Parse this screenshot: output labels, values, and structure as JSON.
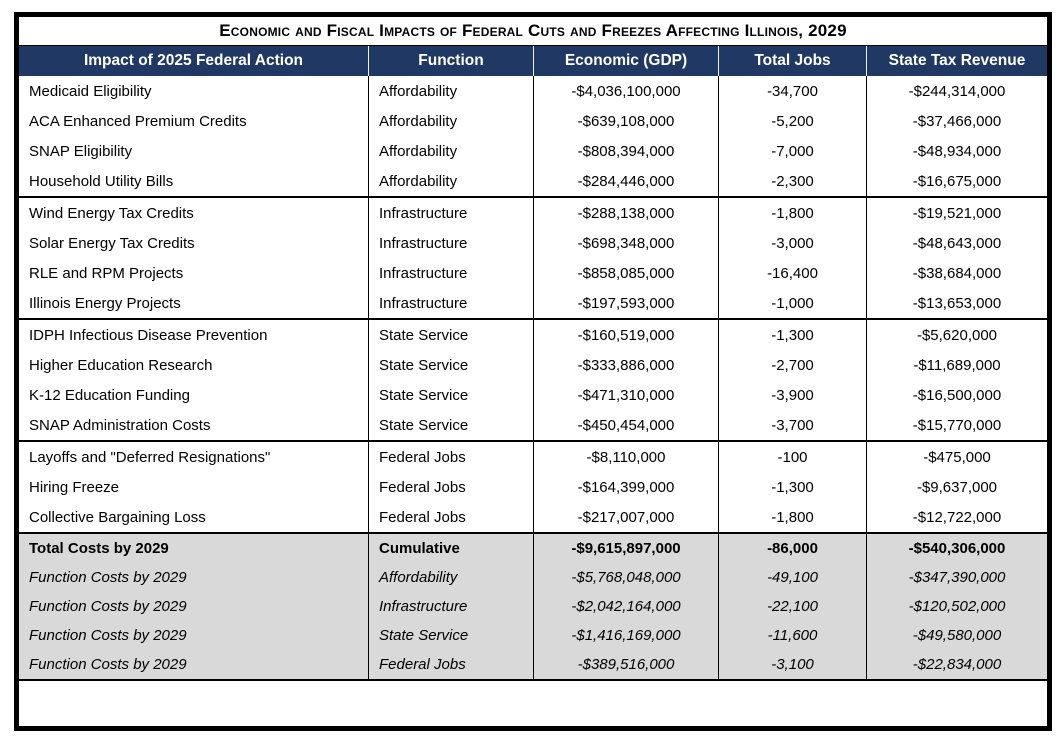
{
  "chart_data": {
    "type": "table",
    "title": "Economic and Fiscal Impacts of Federal Cuts and Freezes Affecting Illinois, 2029",
    "columns": [
      "Impact of 2025 Federal Action",
      "Function",
      "Economic (GDP)",
      "Total Jobs",
      "State Tax Revenue"
    ],
    "groups": [
      [
        [
          "Medicaid Eligibility",
          "Affordability",
          "-$4,036,100,000",
          "-34,700",
          "-$244,314,000"
        ],
        [
          "ACA Enhanced Premium Credits",
          "Affordability",
          "-$639,108,000",
          "-5,200",
          "-$37,466,000"
        ],
        [
          "SNAP Eligibility",
          "Affordability",
          "-$808,394,000",
          "-7,000",
          "-$48,934,000"
        ],
        [
          "Household Utility Bills",
          "Affordability",
          "-$284,446,000",
          "-2,300",
          "-$16,675,000"
        ]
      ],
      [
        [
          "Wind Energy Tax Credits",
          "Infrastructure",
          "-$288,138,000",
          "-1,800",
          "-$19,521,000"
        ],
        [
          "Solar Energy Tax Credits",
          "Infrastructure",
          "-$698,348,000",
          "-3,000",
          "-$48,643,000"
        ],
        [
          "RLE and RPM Projects",
          "Infrastructure",
          "-$858,085,000",
          "-16,400",
          "-$38,684,000"
        ],
        [
          "Illinois Energy Projects",
          "Infrastructure",
          "-$197,593,000",
          "-1,000",
          "-$13,653,000"
        ]
      ],
      [
        [
          "IDPH Infectious Disease Prevention",
          "State Service",
          "-$160,519,000",
          "-1,300",
          "-$5,620,000"
        ],
        [
          "Higher Education Research",
          "State Service",
          "-$333,886,000",
          "-2,700",
          "-$11,689,000"
        ],
        [
          "K-12 Education Funding",
          "State Service",
          "-$471,310,000",
          "-3,900",
          "-$16,500,000"
        ],
        [
          "SNAP Administration Costs",
          "State Service",
          "-$450,454,000",
          "-3,700",
          "-$15,770,000"
        ]
      ],
      [
        [
          "Layoffs and \"Deferred Resignations\"",
          "Federal Jobs",
          "-$8,110,000",
          "-100",
          "-$475,000"
        ],
        [
          "Hiring Freeze",
          "Federal Jobs",
          "-$164,399,000",
          "-1,300",
          "-$9,637,000"
        ],
        [
          "Collective Bargaining Loss",
          "Federal Jobs",
          "-$217,007,000",
          "-1,800",
          "-$12,722,000"
        ]
      ]
    ],
    "summary": [
      {
        "style": "bold",
        "cells": [
          "Total Costs by 2029",
          "Cumulative",
          "-$9,615,897,000",
          "-86,000",
          "-$540,306,000"
        ]
      },
      {
        "style": "italic",
        "cells": [
          "Function Costs by 2029",
          "Affordability",
          "-$5,768,048,000",
          "-49,100",
          "-$347,390,000"
        ]
      },
      {
        "style": "italic",
        "cells": [
          "Function Costs by 2029",
          "Infrastructure",
          "-$2,042,164,000",
          "-22,100",
          "-$120,502,000"
        ]
      },
      {
        "style": "italic",
        "cells": [
          "Function Costs by 2029",
          "State Service",
          "-$1,416,169,000",
          "-11,600",
          "-$49,580,000"
        ]
      },
      {
        "style": "italic",
        "cells": [
          "Function Costs by 2029",
          "Federal Jobs",
          "-$389,516,000",
          "-3,100",
          "-$22,834,000"
        ]
      }
    ],
    "layout": {
      "header_bg": "#1F3864",
      "summary_bg": "#D9D9D9",
      "border": "#000000",
      "grid": "group-separators-only"
    }
  }
}
